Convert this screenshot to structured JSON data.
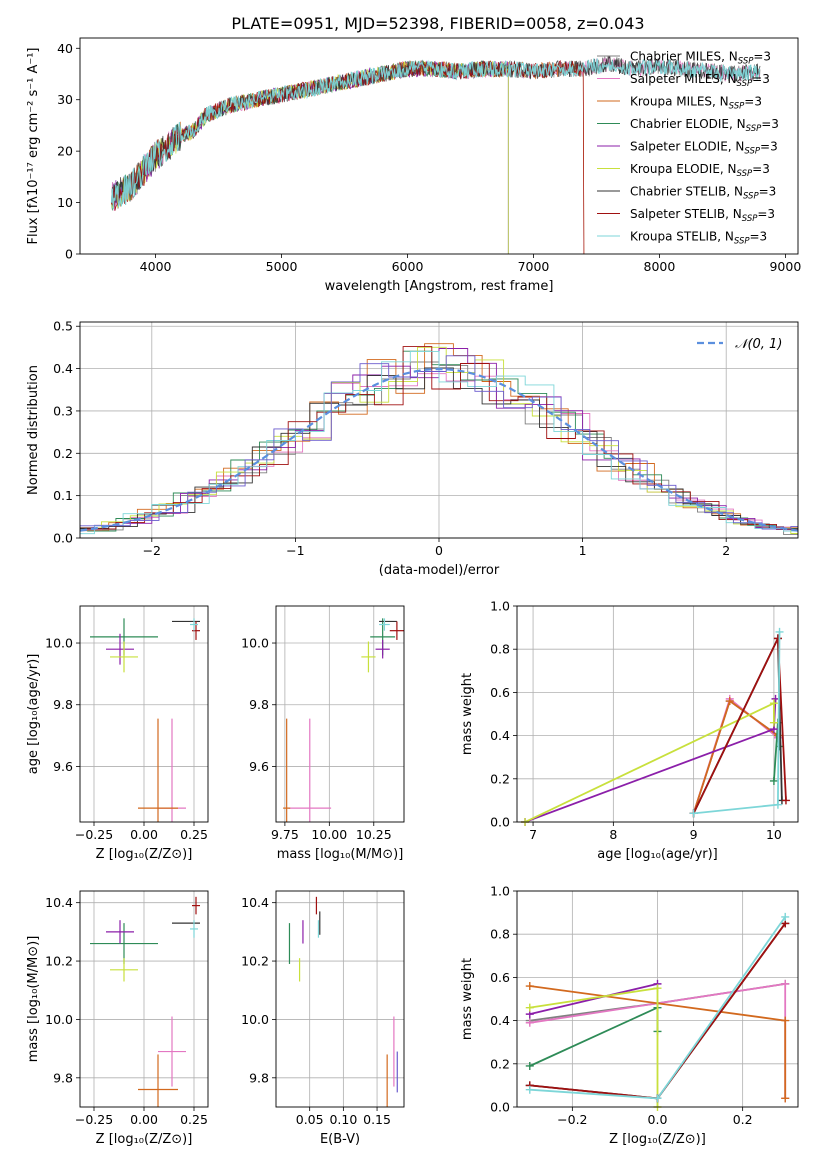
{
  "figure": {
    "title": "PLATE=0951, MJD=52398, FIBERID=0058, z=0.043"
  },
  "palette": {
    "Chabrier MILES": "#808080",
    "Salpeter MILES": "#e377c2",
    "Kroupa MILES": "#d2691e",
    "Chabrier ELODIE": "#2e8b57",
    "Salpeter ELODIE": "#8b1fa9",
    "Kroupa ELODIE": "#c8e03c",
    "Chabrier STELIB": "#333333",
    "Salpeter STELIB": "#a01010",
    "Kroupa STELIB": "#7dd6d8",
    "extra_blue": "#6a5acd",
    "normal_curve": "#5b8fde"
  },
  "chart_data": [
    {
      "id": "spectrum",
      "type": "line",
      "xlabel": "wavelength [Angstrom, rest frame]",
      "ylabel": "Flux [fλ10⁻¹⁷ erg cm⁻² s⁻¹ A⁻¹]",
      "xlim": [
        3400,
        9100
      ],
      "ylim": [
        0,
        42
      ],
      "xticks": [
        4000,
        5000,
        6000,
        7000,
        8000,
        9000
      ],
      "yticks": [
        0,
        10,
        20,
        30,
        40
      ],
      "grid": false,
      "legend_position": "right",
      "spectrum_envelope": [
        [
          3650,
          11
        ],
        [
          3800,
          13
        ],
        [
          3900,
          16
        ],
        [
          4000,
          19
        ],
        [
          4100,
          21
        ],
        [
          4200,
          23
        ],
        [
          4300,
          24
        ],
        [
          4400,
          27
        ],
        [
          4500,
          28
        ],
        [
          4600,
          29
        ],
        [
          4800,
          30
        ],
        [
          5000,
          31
        ],
        [
          5200,
          32
        ],
        [
          5400,
          33
        ],
        [
          5600,
          34
        ],
        [
          5800,
          35
        ],
        [
          6000,
          36
        ],
        [
          6200,
          36
        ],
        [
          6400,
          35.5
        ],
        [
          6600,
          36
        ],
        [
          6800,
          36
        ],
        [
          7000,
          35.5
        ],
        [
          7200,
          36
        ],
        [
          7400,
          36
        ],
        [
          7600,
          37
        ],
        [
          7800,
          36
        ],
        [
          8000,
          36.5
        ],
        [
          8200,
          36
        ],
        [
          8400,
          35.5
        ],
        [
          8600,
          35
        ],
        [
          8800,
          35.5
        ]
      ],
      "series": [
        {
          "name": "Chabrier MILES, N_SSP=3",
          "label_main": "Chabrier MILES, N",
          "label_sub": "SSP",
          "label_tail": "=3",
          "color": "#808080",
          "xmax": 8800
        },
        {
          "name": "Salpeter MILES, N_SSP=3",
          "label_main": "Salpeter MILES, N",
          "label_sub": "SSP",
          "label_tail": "=3",
          "color": "#e377c2",
          "xmax": 8800
        },
        {
          "name": "Kroupa MILES, N_SSP=3",
          "label_main": "Kroupa MILES, N",
          "label_sub": "SSP",
          "label_tail": "=3",
          "color": "#d2691e",
          "xmax": 7400
        },
        {
          "name": "Chabrier ELODIE, N_SSP=3",
          "label_main": "Chabrier ELODIE, N",
          "label_sub": "SSP",
          "label_tail": "=3",
          "color": "#2e8b57",
          "xmax": 6800
        },
        {
          "name": "Salpeter ELODIE, N_SSP=3",
          "label_main": "Salpeter ELODIE, N",
          "label_sub": "SSP",
          "label_tail": "=3",
          "color": "#8b1fa9",
          "xmax": 6800
        },
        {
          "name": "Kroupa ELODIE, N_SSP=3",
          "label_main": "Kroupa ELODIE, N",
          "label_sub": "SSP",
          "label_tail": "=3",
          "color": "#c8e03c",
          "xmax": 6800
        },
        {
          "name": "Chabrier STELIB, N_SSP=3",
          "label_main": "Chabrier STELIB, N",
          "label_sub": "SSP",
          "label_tail": "=3",
          "color": "#333333",
          "xmax": 8800
        },
        {
          "name": "Salpeter STELIB, N_SSP=3",
          "label_main": "Salpeter STELIB, N",
          "label_sub": "SSP",
          "label_tail": "=3",
          "color": "#a01010",
          "xmax": 7400
        },
        {
          "name": "Kroupa STELIB, N_SSP=3",
          "label_main": "Kroupa STELIB, N",
          "label_sub": "SSP",
          "label_tail": "=3",
          "color": "#7dd6d8",
          "xmax": 8800
        }
      ]
    },
    {
      "id": "residual_histogram",
      "type": "bar",
      "xlabel": "(data-model)/error",
      "ylabel": "Normed distribution",
      "xlim": [
        -2.5,
        2.5
      ],
      "ylim": [
        0,
        0.51
      ],
      "xticks": [
        -2,
        -1,
        0,
        1,
        2
      ],
      "xtick_labels": [
        "−2",
        "−1",
        "0",
        "1",
        "2"
      ],
      "yticks": [
        0.0,
        0.1,
        0.2,
        0.3,
        0.4,
        0.5
      ],
      "ytick_labels": [
        "0.0",
        "0.1",
        "0.2",
        "0.3",
        "0.4",
        "0.5"
      ],
      "grid": true,
      "bin_width": 0.2,
      "legend_label": "𝒩(0, 1)",
      "legend_position": "top-right"
    },
    {
      "id": "age_vs_Z",
      "type": "scatter",
      "xlabel": "Z [log₁₀(Z/Z⊙)]",
      "ylabel": "age  [log₁₀(age/yr)]",
      "xlim": [
        -0.32,
        0.32
      ],
      "ylim": [
        9.42,
        10.12
      ],
      "xticks": [
        -0.25,
        0.0,
        0.25
      ],
      "xtick_labels": [
        "−0.25",
        "0.00",
        "0.25"
      ],
      "yticks": [
        9.6,
        9.8,
        10.0
      ],
      "ytick_labels": [
        "9.6",
        "9.8",
        "10.0"
      ],
      "grid": true,
      "points": [
        {
          "x": -0.1,
          "y": 10.02,
          "xerr": 0.17,
          "yerr": 0.06,
          "color": "#2e8b57"
        },
        {
          "x": -0.12,
          "y": 9.98,
          "xerr": 0.07,
          "yerr": 0.05,
          "color": "#8b1fa9"
        },
        {
          "x": -0.1,
          "y": 9.955,
          "xerr": 0.07,
          "yerr": 0.05,
          "color": "#c8e03c"
        },
        {
          "x": 0.21,
          "y": 10.07,
          "xerr": 0.07,
          "yerr": 0.0,
          "color": "#333333"
        },
        {
          "x": 0.26,
          "y": 10.04,
          "xerr": 0.02,
          "yerr": 0.03,
          "color": "#a01010"
        },
        {
          "x": 0.14,
          "y": 9.465,
          "xerr": 0.07,
          "yerr": 0.29,
          "color": "#e377c2"
        },
        {
          "x": 0.07,
          "y": 9.465,
          "xerr": 0.1,
          "yerr": 0.29,
          "color": "#d2691e"
        },
        {
          "x": 0.25,
          "y": 10.06,
          "xerr": 0.02,
          "yerr": 0.02,
          "color": "#7dd6d8"
        }
      ]
    },
    {
      "id": "age_vs_mass",
      "type": "scatter",
      "xlabel": "mass [log₁₀(M/M⊙)]",
      "ylabel": "",
      "xlim": [
        9.7,
        10.42
      ],
      "ylim": [
        9.42,
        10.12
      ],
      "xticks": [
        9.75,
        10.0,
        10.25
      ],
      "xtick_labels": [
        "9.75",
        "10.00",
        "10.25"
      ],
      "yticks": [
        9.6,
        9.8,
        10.0
      ],
      "ytick_labels": [
        "9.6",
        "9.8",
        "10.0"
      ],
      "grid": true,
      "points": [
        {
          "x": 10.3,
          "y": 10.02,
          "xerr": 0.07,
          "yerr": 0.06,
          "color": "#2e8b57"
        },
        {
          "x": 10.3,
          "y": 9.98,
          "xerr": 0.04,
          "yerr": 0.03,
          "color": "#8b1fa9"
        },
        {
          "x": 10.22,
          "y": 9.955,
          "xerr": 0.04,
          "yerr": 0.05,
          "color": "#c8e03c"
        },
        {
          "x": 10.33,
          "y": 10.07,
          "xerr": 0.05,
          "yerr": 0.0,
          "color": "#333333"
        },
        {
          "x": 10.38,
          "y": 10.04,
          "xerr": 0.04,
          "yerr": 0.03,
          "color": "#a01010"
        },
        {
          "x": 9.89,
          "y": 9.465,
          "xerr": 0.12,
          "yerr": 0.29,
          "color": "#e377c2"
        },
        {
          "x": 9.76,
          "y": 9.465,
          "xerr": 0.02,
          "yerr": 0.29,
          "color": "#d2691e"
        },
        {
          "x": 10.31,
          "y": 10.06,
          "xerr": 0.03,
          "yerr": 0.02,
          "color": "#7dd6d8"
        }
      ]
    },
    {
      "id": "weight_vs_age",
      "type": "line",
      "xlabel": "age  [log₁₀(age/yr)]",
      "ylabel": "mass weight",
      "xlim": [
        6.8,
        10.3
      ],
      "ylim": [
        0.0,
        1.0
      ],
      "xticks": [
        7,
        8,
        9,
        10
      ],
      "xtick_labels": [
        "7",
        "8",
        "9",
        "10"
      ],
      "yticks": [
        0.0,
        0.2,
        0.4,
        0.6,
        0.8,
        1.0
      ],
      "ytick_labels": [
        "0.0",
        "0.2",
        "0.4",
        "0.6",
        "0.8",
        "1.0"
      ],
      "grid": true,
      "series": [
        {
          "color": "#808080",
          "points": [
            [
              9.0,
              0.04
            ],
            [
              9.45,
              0.56
            ],
            [
              10.05,
              0.4
            ]
          ]
        },
        {
          "color": "#e377c2",
          "points": [
            [
              9.0,
              0.04
            ],
            [
              9.45,
              0.57
            ],
            [
              10.05,
              0.39
            ]
          ]
        },
        {
          "color": "#d2691e",
          "points": [
            [
              9.0,
              0.04
            ],
            [
              9.45,
              0.56
            ],
            [
              10.05,
              0.4
            ]
          ]
        },
        {
          "color": "#2e8b57",
          "points": [
            [
              10.0,
              0.19
            ],
            [
              10.05,
              0.46
            ],
            [
              10.07,
              0.35
            ]
          ]
        },
        {
          "color": "#8b1fa9",
          "points": [
            [
              6.9,
              0.0
            ],
            [
              10.0,
              0.43
            ],
            [
              10.02,
              0.57
            ]
          ]
        },
        {
          "color": "#c8e03c",
          "points": [
            [
              6.9,
              0.0
            ],
            [
              10.0,
              0.55
            ],
            [
              10.0,
              0.46
            ]
          ]
        },
        {
          "color": "#333333",
          "points": [
            [
              9.0,
              0.04
            ],
            [
              10.05,
              0.85
            ],
            [
              10.1,
              0.1
            ]
          ]
        },
        {
          "color": "#a01010",
          "points": [
            [
              9.0,
              0.04
            ],
            [
              10.05,
              0.85
            ],
            [
              10.15,
              0.1
            ]
          ]
        },
        {
          "color": "#7dd6d8",
          "points": [
            [
              9.0,
              0.04
            ],
            [
              10.05,
              0.08
            ],
            [
              10.07,
              0.88
            ]
          ]
        }
      ]
    },
    {
      "id": "mass_vs_Z",
      "type": "scatter",
      "xlabel": "Z [log₁₀(Z/Z⊙)]",
      "ylabel": "mass [log₁₀(M/M⊙)]",
      "xlim": [
        -0.32,
        0.32
      ],
      "ylim": [
        9.7,
        10.44
      ],
      "xticks": [
        -0.25,
        0.0,
        0.25
      ],
      "xtick_labels": [
        "−0.25",
        "0.00",
        "0.25"
      ],
      "yticks": [
        9.8,
        10.0,
        10.2,
        10.4
      ],
      "ytick_labels": [
        "9.8",
        "10.0",
        "10.2",
        "10.4"
      ],
      "grid": true,
      "points": [
        {
          "x": -0.1,
          "y": 10.26,
          "xerr": 0.17,
          "yerr": 0.07,
          "color": "#2e8b57"
        },
        {
          "x": -0.12,
          "y": 10.3,
          "xerr": 0.07,
          "yerr": 0.04,
          "color": "#8b1fa9"
        },
        {
          "x": -0.1,
          "y": 10.17,
          "xerr": 0.07,
          "yerr": 0.04,
          "color": "#c8e03c"
        },
        {
          "x": 0.21,
          "y": 10.33,
          "xerr": 0.07,
          "yerr": 0.0,
          "color": "#333333"
        },
        {
          "x": 0.26,
          "y": 10.39,
          "xerr": 0.02,
          "yerr": 0.03,
          "color": "#a01010"
        },
        {
          "x": 0.14,
          "y": 9.89,
          "xerr": 0.07,
          "yerr": 0.12,
          "color": "#e377c2"
        },
        {
          "x": 0.07,
          "y": 9.76,
          "xerr": 0.1,
          "yerr": 0.12,
          "color": "#d2691e"
        },
        {
          "x": 0.25,
          "y": 10.31,
          "xerr": 0.02,
          "yerr": 0.03,
          "color": "#7dd6d8"
        }
      ]
    },
    {
      "id": "mass_vs_EBV",
      "type": "scatter",
      "xlabel": "E(B-V)",
      "ylabel": "",
      "xlim": [
        0.0,
        0.19
      ],
      "ylim": [
        9.7,
        10.44
      ],
      "xticks": [
        0.05,
        0.1,
        0.15
      ],
      "xtick_labels": [
        "0.05",
        "0.10",
        "0.15"
      ],
      "yticks": [
        9.8,
        10.0,
        10.2,
        10.4
      ],
      "ytick_labels": [
        "9.8",
        "10.0",
        "10.2",
        "10.4"
      ],
      "grid": true,
      "points": [
        {
          "x": 0.02,
          "y": 10.26,
          "xerr": 0.0,
          "yerr": 0.07,
          "color": "#2e8b57"
        },
        {
          "x": 0.04,
          "y": 10.3,
          "xerr": 0.0,
          "yerr": 0.04,
          "color": "#8b1fa9"
        },
        {
          "x": 0.035,
          "y": 10.17,
          "xerr": 0.0,
          "yerr": 0.04,
          "color": "#c8e03c"
        },
        {
          "x": 0.065,
          "y": 10.33,
          "xerr": 0.0,
          "yerr": 0.04,
          "color": "#333333"
        },
        {
          "x": 0.06,
          "y": 10.39,
          "xerr": 0.0,
          "yerr": 0.03,
          "color": "#a01010"
        },
        {
          "x": 0.175,
          "y": 9.89,
          "xerr": 0.0,
          "yerr": 0.12,
          "color": "#e377c2"
        },
        {
          "x": 0.165,
          "y": 9.76,
          "xerr": 0.0,
          "yerr": 0.12,
          "color": "#d2691e"
        },
        {
          "x": 0.18,
          "y": 9.82,
          "xerr": 0.0,
          "yerr": 0.07,
          "color": "#6a5acd"
        },
        {
          "x": 0.063,
          "y": 10.31,
          "xerr": 0.0,
          "yerr": 0.03,
          "color": "#7dd6d8"
        }
      ]
    },
    {
      "id": "weight_vs_Z",
      "type": "line",
      "xlabel": "Z [log₁₀(Z/Z⊙)]",
      "ylabel": "mass weight",
      "xlim": [
        -0.33,
        0.33
      ],
      "ylim": [
        0.0,
        1.0
      ],
      "xticks": [
        -0.2,
        0.0,
        0.2
      ],
      "xtick_labels": [
        "−0.2",
        "0.0",
        "0.2"
      ],
      "yticks": [
        0.0,
        0.2,
        0.4,
        0.6,
        0.8,
        1.0
      ],
      "ytick_labels": [
        "0.0",
        "0.2",
        "0.4",
        "0.6",
        "0.8",
        "1.0"
      ],
      "grid": true,
      "series": [
        {
          "color": "#808080",
          "points": [
            [
              -0.3,
              0.4
            ],
            [
              0.0,
              0.48
            ],
            [
              0.3,
              0.57
            ]
          ]
        },
        {
          "color": "#e377c2",
          "points": [
            [
              -0.3,
              0.39
            ],
            [
              0.3,
              0.57
            ],
            [
              0.3,
              0.04
            ]
          ]
        },
        {
          "color": "#d2691e",
          "points": [
            [
              -0.3,
              0.56
            ],
            [
              0.3,
              0.4
            ],
            [
              0.3,
              0.04
            ]
          ]
        },
        {
          "color": "#2e8b57",
          "points": [
            [
              -0.3,
              0.19
            ],
            [
              0.0,
              0.46
            ],
            [
              0.0,
              0.35
            ]
          ]
        },
        {
          "color": "#8b1fa9",
          "points": [
            [
              -0.3,
              0.43
            ],
            [
              0.0,
              0.57
            ]
          ]
        },
        {
          "color": "#c8e03c",
          "points": [
            [
              -0.3,
              0.46
            ],
            [
              0.0,
              0.55
            ],
            [
              0.0,
              0.0
            ]
          ]
        },
        {
          "color": "#333333",
          "points": [
            [
              -0.3,
              0.1
            ],
            [
              0.0,
              0.04
            ],
            [
              0.3,
              0.85
            ]
          ]
        },
        {
          "color": "#a01010",
          "points": [
            [
              -0.3,
              0.1
            ],
            [
              0.0,
              0.04
            ],
            [
              0.3,
              0.85
            ]
          ]
        },
        {
          "color": "#7dd6d8",
          "points": [
            [
              -0.3,
              0.08
            ],
            [
              0.0,
              0.04
            ],
            [
              0.3,
              0.88
            ]
          ]
        }
      ]
    }
  ]
}
